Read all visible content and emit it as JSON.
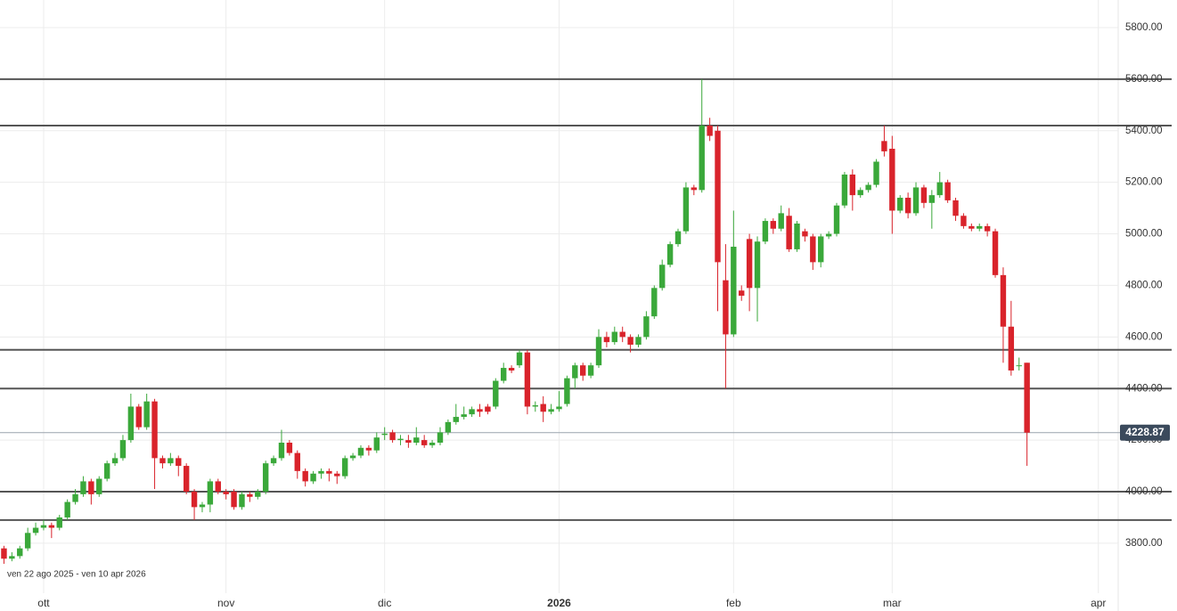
{
  "chart_data": {
    "type": "candlestick",
    "annotation": "ven 22 ago 2025 - ven 10 apr 2026",
    "categories": [
      null,
      null,
      null,
      null,
      null,
      "ott",
      null,
      null,
      null,
      null,
      null,
      null,
      null,
      null,
      null,
      null,
      null,
      null,
      null,
      null,
      null,
      null,
      null,
      null,
      null,
      null,
      null,
      null,
      "nov",
      null,
      null,
      null,
      null,
      null,
      null,
      null,
      null,
      null,
      null,
      null,
      null,
      null,
      null,
      null,
      null,
      null,
      null,
      null,
      "dic",
      null,
      null,
      null,
      null,
      null,
      null,
      null,
      null,
      null,
      null,
      null,
      null,
      null,
      null,
      null,
      null,
      null,
      null,
      null,
      null,
      null,
      "2026",
      null,
      null,
      null,
      null,
      null,
      null,
      null,
      null,
      null,
      null,
      null,
      null,
      null,
      null,
      null,
      null,
      null,
      null,
      null,
      null,
      null,
      "feb",
      null,
      null,
      null,
      null,
      null,
      null,
      null,
      null,
      null,
      null,
      null,
      null,
      null,
      null,
      null,
      null,
      null,
      null,
      null,
      "mar",
      null,
      null,
      null,
      null,
      null,
      null,
      null,
      null,
      null,
      null,
      null,
      null,
      null,
      null,
      null,
      null,
      null,
      null,
      null,
      null,
      null,
      null,
      null,
      null,
      null,
      "apr",
      null,
      null
    ],
    "open": [
      3780,
      3740,
      3750,
      3780,
      3840,
      3860,
      3870,
      3860,
      3900,
      3960,
      3990,
      4040,
      3990,
      4050,
      4110,
      4130,
      4200,
      4330,
      4250,
      4350,
      4130,
      4110,
      4130,
      4100,
      4000,
      3940,
      3950,
      4040,
      4000,
      4000,
      3940,
      3990,
      3980,
      4000,
      4110,
      4130,
      4190,
      4150,
      4080,
      4040,
      4070,
      4080,
      4070,
      4060,
      4130,
      4140,
      4170,
      4160,
      4220,
      4230,
      4200,
      4200,
      4190,
      4200,
      4180,
      4190,
      4230,
      4270,
      4290,
      4300,
      4320,
      4330,
      4330,
      4430,
      4480,
      4490,
      4540,
      4330,
      4340,
      4310,
      4320,
      4340,
      4440,
      4490,
      4450,
      4490,
      4600,
      4580,
      4620,
      4600,
      4570,
      4600,
      4680,
      4790,
      4880,
      4960,
      5010,
      5180,
      5170,
      5420,
      5400,
      4820,
      4610,
      4780,
      4980,
      4790,
      4970,
      5050,
      5020,
      5070,
      4940,
      5010,
      4990,
      4890,
      4990,
      5000,
      5110,
      5230,
      5150,
      5170,
      5190,
      5360,
      5330,
      5090,
      5140,
      5080,
      5180,
      5120,
      5150,
      5200,
      5130,
      5070,
      5030,
      5020,
      5030,
      5010,
      4840,
      4640,
      4490,
      4500,
      null,
      null,
      null,
      null,
      null,
      null,
      null,
      null,
      null,
      null,
      null
    ],
    "high": [
      3790,
      3765,
      3790,
      3860,
      3880,
      3890,
      3880,
      3910,
      3970,
      4010,
      4060,
      4050,
      4060,
      4120,
      4150,
      4220,
      4380,
      4340,
      4380,
      4360,
      4140,
      4150,
      4140,
      4110,
      4010,
      3960,
      4050,
      4050,
      4010,
      4010,
      4000,
      4000,
      4010,
      4120,
      4140,
      4240,
      4200,
      4160,
      4090,
      4080,
      4090,
      4090,
      4080,
      4140,
      4150,
      4180,
      4180,
      4230,
      4250,
      4240,
      4220,
      4220,
      4250,
      4220,
      4200,
      4250,
      4280,
      4340,
      4330,
      4330,
      4340,
      4340,
      4440,
      4500,
      4490,
      4550,
      4550,
      4350,
      4370,
      4340,
      4390,
      4450,
      4500,
      4500,
      4500,
      4630,
      4620,
      4640,
      4640,
      4610,
      4610,
      4700,
      4800,
      4900,
      4970,
      5020,
      5200,
      5190,
      5600,
      5450,
      5420,
      4960,
      5090,
      4800,
      5000,
      4990,
      5060,
      5060,
      5110,
      5100,
      5050,
      5020,
      5000,
      5000,
      5010,
      5120,
      5240,
      5250,
      5180,
      5200,
      5290,
      5420,
      5380,
      5150,
      5160,
      5200,
      5190,
      5170,
      5240,
      5210,
      5140,
      5080,
      5040,
      5040,
      5040,
      5020,
      4870,
      4740,
      4520,
      4500,
      null,
      null,
      null,
      null,
      null,
      null,
      null,
      null,
      null,
      null,
      null
    ],
    "low": [
      3720,
      3730,
      3740,
      3770,
      3830,
      3850,
      3820,
      3850,
      3890,
      3950,
      3980,
      3950,
      3980,
      4040,
      4100,
      4120,
      4190,
      4240,
      4240,
      4010,
      4090,
      4100,
      4060,
      3990,
      3890,
      3920,
      3920,
      3990,
      3970,
      3930,
      3930,
      3960,
      3970,
      3990,
      4100,
      4120,
      4140,
      4050,
      4020,
      4030,
      4050,
      4040,
      4030,
      4050,
      4120,
      4130,
      4140,
      4150,
      4200,
      4190,
      4180,
      4170,
      4180,
      4170,
      4170,
      4180,
      4220,
      4260,
      4280,
      4290,
      4290,
      4300,
      4320,
      4420,
      4460,
      4480,
      4300,
      4310,
      4270,
      4300,
      4310,
      4330,
      4400,
      4430,
      4440,
      4480,
      4560,
      4570,
      4580,
      4540,
      4560,
      4590,
      4670,
      4780,
      4870,
      4950,
      5000,
      5150,
      5160,
      5360,
      4700,
      4400,
      4600,
      4740,
      4700,
      4660,
      4960,
      5000,
      5010,
      4930,
      4930,
      4970,
      4860,
      4870,
      4980,
      4990,
      5100,
      5090,
      5140,
      5160,
      5180,
      5300,
      5000,
      5080,
      5060,
      5070,
      5100,
      5020,
      5140,
      5120,
      5050,
      5020,
      5010,
      5010,
      4990,
      4830,
      4500,
      4450,
      4470,
      4100,
      null,
      null,
      null,
      null,
      null,
      null,
      null,
      null,
      null,
      null,
      null
    ],
    "close": [
      3740,
      3750,
      3780,
      3840,
      3860,
      3870,
      3860,
      3900,
      3960,
      3990,
      4040,
      3990,
      4050,
      4110,
      4130,
      4200,
      4330,
      4250,
      4350,
      4130,
      4110,
      4130,
      4100,
      4000,
      3940,
      3950,
      4040,
      4000,
      3990,
      3940,
      3990,
      3980,
      4000,
      4110,
      4130,
      4190,
      4150,
      4080,
      4040,
      4070,
      4080,
      4070,
      4060,
      4130,
      4140,
      4170,
      4160,
      4210,
      4225,
      4200,
      4205,
      4190,
      4210,
      4180,
      4190,
      4230,
      4270,
      4290,
      4300,
      4320,
      4310,
      4310,
      4430,
      4480,
      4470,
      4540,
      4330,
      4335,
      4310,
      4320,
      4330,
      4440,
      4490,
      4450,
      4490,
      4600,
      4580,
      4620,
      4600,
      4570,
      4600,
      4680,
      4790,
      4880,
      4960,
      5010,
      5180,
      5170,
      5420,
      5380,
      4890,
      4610,
      4950,
      4760,
      4790,
      4970,
      5050,
      5020,
      5080,
      4940,
      5040,
      4990,
      4890,
      4990,
      5000,
      5110,
      5230,
      5150,
      5170,
      5190,
      5280,
      5320,
      5090,
      5140,
      5080,
      5180,
      5120,
      5150,
      5200,
      5130,
      5070,
      5030,
      5020,
      5030,
      5010,
      4840,
      4640,
      4470,
      4490,
      4228.87,
      null,
      null,
      null,
      null,
      null,
      null,
      null,
      null,
      null,
      null,
      null
    ],
    "up_color": "#3aa83a",
    "down_color": "#d9232b",
    "levels": [
      5600,
      5420,
      4550,
      4400,
      4000,
      3890
    ],
    "ylim": [
      3620,
      5907
    ],
    "yticks": [
      {
        "value": 3800,
        "label": "3800.00"
      },
      {
        "value": 4000,
        "label": "4000.00"
      },
      {
        "value": 4200,
        "label": "4200.00"
      },
      {
        "value": 4400,
        "label": "4400.00"
      },
      {
        "value": 4600,
        "label": "4600.00"
      },
      {
        "value": 4800,
        "label": "4800.00"
      },
      {
        "value": 5000,
        "label": "5000.00"
      },
      {
        "value": 5200,
        "label": "5200.00"
      },
      {
        "value": 5400,
        "label": "5400.00"
      },
      {
        "value": 5600,
        "label": "5600.00"
      },
      {
        "value": 5800,
        "label": "5800.00"
      }
    ],
    "grid": true
  }
}
